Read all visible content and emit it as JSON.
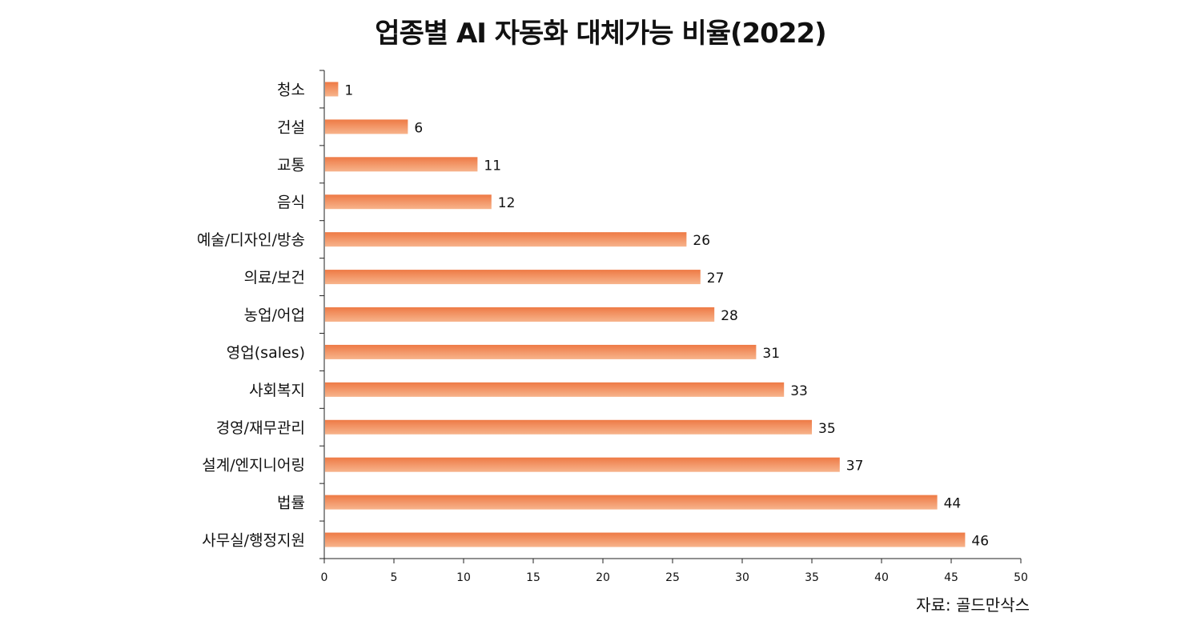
{
  "chart_data": {
    "type": "bar",
    "orientation": "horizontal",
    "title": "업종별 AI 자동화 대체가능 비율(2022)",
    "categories": [
      "청소",
      "건설",
      "교통",
      "음식",
      "예술/디자인/방송",
      "의료/보건",
      "농업/어업",
      "영업(sales)",
      "사회복지",
      "경영/재무관리",
      "설계/엔지니어링",
      "법률",
      "사무실/행정지원"
    ],
    "values": [
      1,
      6,
      11,
      12,
      26,
      27,
      28,
      31,
      33,
      35,
      37,
      44,
      46
    ],
    "value_labels": [
      "1",
      "6",
      "11",
      "12",
      "26",
      "27",
      "28",
      "31",
      "33",
      "35",
      "37",
      "44",
      "46"
    ],
    "xlim": [
      0,
      50
    ],
    "x_ticks": [
      0,
      5,
      10,
      15,
      20,
      25,
      30,
      35,
      40,
      45,
      50
    ],
    "x_tick_labels": [
      "0",
      "5",
      "10",
      "15",
      "20",
      "25",
      "30",
      "35",
      "40",
      "45",
      "50"
    ],
    "grid": false,
    "legend": "none",
    "bar_color_top": "#ee7a45",
    "bar_color_bottom": "#f7b48c",
    "source": "자료: 골드만삭스"
  }
}
